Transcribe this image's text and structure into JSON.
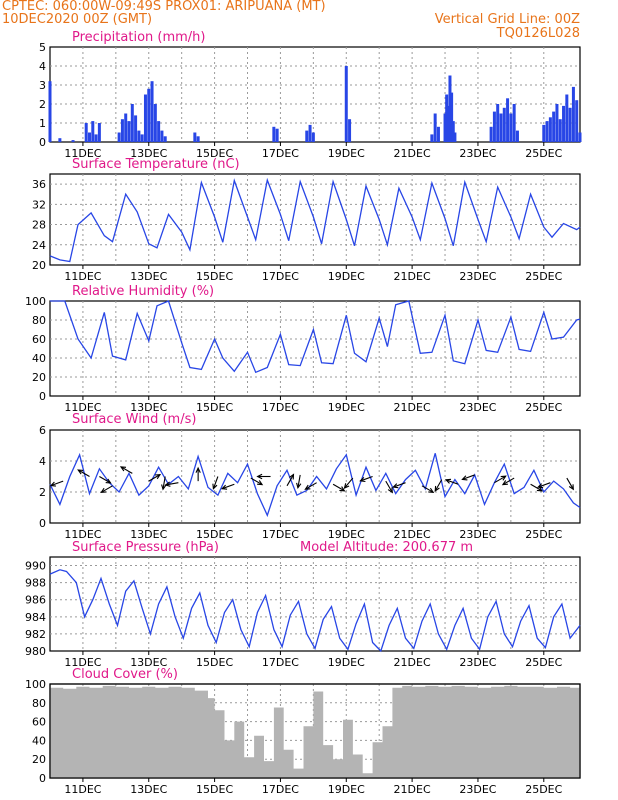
{
  "header": {
    "left_line1": "CPTEC:   060:00W-09:49S   PROX01: ARIPUANA (MT)",
    "left_line2": "10DEC2020 00Z (GMT)",
    "right_line1": "Vertical Grid Line: 00Z",
    "right_line2": "TQ0126L028"
  },
  "colors": {
    "header_text": "#e8741a",
    "panel_title": "#e0198a",
    "series_line": "#2846e6",
    "bar_fill": "#2846e6",
    "cloud_fill": "#b4b4b4",
    "grid": "#9a9a9a",
    "arrow": "#000000"
  },
  "chart_data": [
    {
      "id": "precip",
      "type": "bar",
      "title": "Precipitation (mm/h)",
      "ylim": [
        0,
        5
      ],
      "yticks": [
        "0",
        "1",
        "2",
        "3",
        "4",
        "5"
      ],
      "x_ticks": [
        "11DEC",
        "13DEC",
        "15DEC",
        "17DEC",
        "19DEC",
        "21DEC",
        "23DEC",
        "25DEC"
      ],
      "x": [
        0,
        0.3,
        0.7,
        1.1,
        1.2,
        1.3,
        1.4,
        1.5,
        2.1,
        2.2,
        2.3,
        2.4,
        2.5,
        2.6,
        2.7,
        2.8,
        2.9,
        3.0,
        3.1,
        3.2,
        3.3,
        3.4,
        3.5,
        4.4,
        4.5,
        6.8,
        6.9,
        7.8,
        7.9,
        8.0,
        9.0,
        9.1,
        11.6,
        11.7,
        11.8,
        12.0,
        12.05,
        12.1,
        12.15,
        12.2,
        12.25,
        12.3,
        13.4,
        13.5,
        13.6,
        13.7,
        13.8,
        13.9,
        14.0,
        14.1,
        14.2,
        15.0,
        15.1,
        15.2,
        15.3,
        15.4,
        15.5,
        15.6,
        15.7,
        15.8,
        15.9,
        16.0,
        16.1
      ],
      "values": [
        3.2,
        0.2,
        0.1,
        1.0,
        0.5,
        1.1,
        0.4,
        1.0,
        0.5,
        1.2,
        1.5,
        1.1,
        2.0,
        1.4,
        0.6,
        0.4,
        2.5,
        2.8,
        3.2,
        2.0,
        1.1,
        0.6,
        0.3,
        0.5,
        0.3,
        0.8,
        0.7,
        0.6,
        0.9,
        0.5,
        4.0,
        1.2,
        0.4,
        1.5,
        0.8,
        1.5,
        2.5,
        1.9,
        3.5,
        2.6,
        1.1,
        0.5,
        0.8,
        1.6,
        2.0,
        1.5,
        1.8,
        2.3,
        1.5,
        2.0,
        0.6,
        0.9,
        1.1,
        1.3,
        1.6,
        2.0,
        1.2,
        1.9,
        2.5,
        1.8,
        2.9,
        2.2,
        0.5
      ]
    },
    {
      "id": "temp",
      "type": "line",
      "title": "Surface Temperature (nC)",
      "ylim": [
        20,
        38
      ],
      "yticks": [
        "20",
        "24",
        "28",
        "32",
        "36"
      ],
      "x_ticks": [
        "11DEC",
        "13DEC",
        "15DEC",
        "17DEC",
        "19DEC",
        "21DEC",
        "23DEC",
        "25DEC"
      ],
      "x": [
        0,
        0.3,
        0.6,
        0.85,
        1.25,
        1.65,
        1.9,
        2.3,
        2.65,
        3.0,
        3.25,
        3.6,
        4.0,
        4.25,
        4.6,
        5.0,
        5.25,
        5.6,
        6.0,
        6.25,
        6.6,
        7.0,
        7.25,
        7.6,
        8.0,
        8.25,
        8.6,
        9.0,
        9.25,
        9.6,
        10.0,
        10.25,
        10.6,
        11.0,
        11.25,
        11.6,
        12.0,
        12.25,
        12.6,
        13.0,
        13.25,
        13.6,
        14.0,
        14.25,
        14.6,
        15.0,
        15.25,
        15.6,
        16.0,
        16.1
      ],
      "values": [
        21.8,
        21.0,
        20.7,
        28.0,
        30.3,
        25.8,
        24.6,
        34.0,
        30.5,
        24.2,
        23.4,
        30.0,
        26.5,
        23.0,
        36.3,
        29.5,
        24.5,
        36.7,
        29.5,
        25.0,
        36.8,
        30.0,
        24.8,
        36.5,
        29.5,
        24.2,
        36.5,
        29.0,
        23.8,
        35.6,
        29.0,
        24.0,
        35.2,
        29.5,
        25.0,
        36.2,
        29.2,
        23.8,
        36.4,
        29.0,
        24.6,
        35.4,
        29.5,
        25.2,
        34.0,
        27.5,
        25.5,
        28.2,
        27.0,
        27.5
      ]
    },
    {
      "id": "rh",
      "type": "line",
      "title": "Relative Humidity (%)",
      "ylim": [
        0,
        100
      ],
      "yticks": [
        "0",
        "20",
        "40",
        "60",
        "80",
        "100"
      ],
      "x_ticks": [
        "11DEC",
        "13DEC",
        "15DEC",
        "17DEC",
        "19DEC",
        "21DEC",
        "23DEC",
        "25DEC"
      ],
      "x": [
        0,
        0.45,
        0.85,
        1.25,
        1.65,
        1.9,
        2.3,
        2.65,
        3.0,
        3.25,
        3.6,
        4.0,
        4.25,
        4.6,
        5.0,
        5.25,
        5.6,
        6.0,
        6.25,
        6.6,
        7.0,
        7.25,
        7.6,
        8.0,
        8.25,
        8.6,
        9.0,
        9.25,
        9.6,
        10.0,
        10.25,
        10.5,
        10.9,
        11.25,
        11.6,
        12.0,
        12.25,
        12.6,
        13.0,
        13.25,
        13.6,
        14.0,
        14.25,
        14.6,
        15.0,
        15.25,
        15.6,
        16.0,
        16.1
      ],
      "values": [
        100,
        100,
        60,
        40,
        88,
        42,
        38,
        87,
        58,
        95,
        100,
        56,
        30,
        28,
        60,
        40,
        26,
        46,
        25,
        30,
        65,
        33,
        32,
        70,
        35,
        34,
        85,
        45,
        36,
        82,
        52,
        96,
        100,
        45,
        46,
        85,
        37,
        34,
        80,
        48,
        46,
        83,
        49,
        47,
        88,
        60,
        62,
        80,
        81
      ]
    },
    {
      "id": "wind",
      "type": "line",
      "title": "Surface Wind (m/s)",
      "ylim": [
        0,
        6
      ],
      "yticks": [
        "0",
        "2",
        "4",
        "6"
      ],
      "x_ticks": [
        "11DEC",
        "13DEC",
        "15DEC",
        "17DEC",
        "19DEC",
        "21DEC",
        "23DEC",
        "25DEC"
      ],
      "x": [
        0,
        0.3,
        0.6,
        0.9,
        1.2,
        1.5,
        1.8,
        2.1,
        2.4,
        2.7,
        3.0,
        3.3,
        3.6,
        3.9,
        4.2,
        4.5,
        4.8,
        5.1,
        5.4,
        5.7,
        6.0,
        6.3,
        6.6,
        6.9,
        7.2,
        7.5,
        7.8,
        8.1,
        8.4,
        8.7,
        9.0,
        9.3,
        9.6,
        9.9,
        10.2,
        10.5,
        10.8,
        11.1,
        11.4,
        11.7,
        12.0,
        12.3,
        12.6,
        12.9,
        13.2,
        13.5,
        13.8,
        14.1,
        14.4,
        14.7,
        15.0,
        15.3,
        15.6,
        15.9,
        16.1
      ],
      "values": [
        2.5,
        1.2,
        3.0,
        4.4,
        1.9,
        3.5,
        2.6,
        2.0,
        3.2,
        1.8,
        2.4,
        3.6,
        2.5,
        3.0,
        2.2,
        4.3,
        2.3,
        1.8,
        3.2,
        2.6,
        3.8,
        1.9,
        0.5,
        2.4,
        3.4,
        1.8,
        2.1,
        3.0,
        2.2,
        3.5,
        4.4,
        1.8,
        3.6,
        2.1,
        3.2,
        1.9,
        2.8,
        3.4,
        2.2,
        4.5,
        1.7,
        2.8,
        1.9,
        3.1,
        1.2,
        2.6,
        3.8,
        1.9,
        2.3,
        3.4,
        2.0,
        2.7,
        2.2,
        1.3,
        1.0
      ],
      "arrows": [
        {
          "x": 0.4,
          "y": 2.7,
          "angle": 200
        },
        {
          "x": 1.2,
          "y": 3.0,
          "angle": 150
        },
        {
          "x": 1.5,
          "y": 3.0,
          "angle": 330
        },
        {
          "x": 1.9,
          "y": 2.4,
          "angle": 210
        },
        {
          "x": 2.5,
          "y": 3.2,
          "angle": 150
        },
        {
          "x": 3.0,
          "y": 2.7,
          "angle": 30
        },
        {
          "x": 3.5,
          "y": 3.0,
          "angle": 260
        },
        {
          "x": 3.9,
          "y": 2.6,
          "angle": 190
        },
        {
          "x": 4.5,
          "y": 2.7,
          "angle": 90
        },
        {
          "x": 5.1,
          "y": 3.0,
          "angle": 250
        },
        {
          "x": 5.6,
          "y": 2.5,
          "angle": 200
        },
        {
          "x": 6.1,
          "y": 2.9,
          "angle": 330
        },
        {
          "x": 6.7,
          "y": 3.0,
          "angle": 180
        },
        {
          "x": 7.2,
          "y": 2.4,
          "angle": 60
        },
        {
          "x": 7.6,
          "y": 3.1,
          "angle": 260
        },
        {
          "x": 8.1,
          "y": 2.6,
          "angle": 210
        },
        {
          "x": 8.6,
          "y": 2.5,
          "angle": 330
        },
        {
          "x": 9.2,
          "y": 2.9,
          "angle": 230
        },
        {
          "x": 9.8,
          "y": 3.0,
          "angle": 200
        },
        {
          "x": 10.2,
          "y": 2.7,
          "angle": 300
        },
        {
          "x": 10.8,
          "y": 2.6,
          "angle": 200
        },
        {
          "x": 11.3,
          "y": 2.4,
          "angle": 330
        },
        {
          "x": 11.9,
          "y": 2.8,
          "angle": 240
        },
        {
          "x": 12.4,
          "y": 2.5,
          "angle": 160
        },
        {
          "x": 12.9,
          "y": 3.1,
          "angle": 200
        },
        {
          "x": 13.5,
          "y": 2.6,
          "angle": 30
        },
        {
          "x": 14.1,
          "y": 2.9,
          "angle": 210
        },
        {
          "x": 14.6,
          "y": 2.5,
          "angle": 330
        },
        {
          "x": 15.2,
          "y": 2.6,
          "angle": 200
        },
        {
          "x": 15.7,
          "y": 2.9,
          "angle": 300
        }
      ]
    },
    {
      "id": "pres",
      "type": "line",
      "title": "Surface Pressure (hPa)",
      "subtitle": "Model Altitude: 200.677  m",
      "ylim": [
        980,
        991
      ],
      "yticks": [
        "980",
        "982",
        "984",
        "986",
        "988",
        "990"
      ],
      "x_ticks": [
        "11DEC",
        "13DEC",
        "15DEC",
        "17DEC",
        "19DEC",
        "21DEC",
        "23DEC",
        "25DEC"
      ],
      "x": [
        0,
        0.3,
        0.5,
        0.8,
        1.05,
        1.3,
        1.55,
        1.8,
        2.05,
        2.3,
        2.55,
        2.8,
        3.05,
        3.3,
        3.55,
        3.8,
        4.05,
        4.3,
        4.55,
        4.8,
        5.05,
        5.3,
        5.55,
        5.8,
        6.05,
        6.3,
        6.55,
        6.8,
        7.05,
        7.3,
        7.55,
        7.8,
        8.05,
        8.3,
        8.55,
        8.8,
        9.05,
        9.3,
        9.55,
        9.8,
        10.05,
        10.3,
        10.55,
        10.8,
        11.05,
        11.3,
        11.55,
        11.8,
        12.05,
        12.3,
        12.55,
        12.8,
        13.05,
        13.3,
        13.55,
        13.8,
        14.05,
        14.3,
        14.55,
        14.8,
        15.05,
        15.3,
        15.55,
        15.8,
        16.1
      ],
      "values": [
        989.0,
        989.5,
        989.3,
        988.0,
        984.0,
        986.0,
        988.5,
        985.5,
        983.0,
        987.0,
        988.2,
        985.0,
        982.0,
        985.5,
        987.5,
        984.0,
        981.5,
        985.0,
        986.8,
        983.0,
        981.0,
        984.5,
        986.0,
        982.5,
        980.5,
        984.5,
        986.5,
        982.5,
        980.5,
        984.2,
        985.8,
        982.0,
        980.3,
        983.7,
        985.2,
        981.5,
        980.2,
        983.2,
        985.5,
        981.0,
        980.0,
        983.0,
        985.0,
        981.5,
        980.3,
        983.5,
        985.5,
        982.0,
        980.2,
        983.0,
        985.0,
        981.5,
        980.2,
        984.0,
        985.8,
        982.0,
        980.5,
        983.5,
        985.3,
        981.5,
        980.4,
        984.0,
        985.5,
        981.5,
        983.0
      ]
    },
    {
      "id": "cloud",
      "type": "area",
      "title": "Cloud Cover (%)",
      "ylim": [
        0,
        100
      ],
      "yticks": [
        "0",
        "20",
        "40",
        "60",
        "80",
        "100"
      ],
      "x_ticks": [
        "11DEC",
        "13DEC",
        "15DEC",
        "17DEC",
        "19DEC",
        "21DEC",
        "23DEC",
        "25DEC"
      ],
      "x": [
        0,
        0.4,
        0.8,
        1.2,
        1.6,
        2.0,
        2.4,
        2.8,
        3.2,
        3.6,
        4.0,
        4.4,
        4.8,
        5.0,
        5.3,
        5.6,
        5.9,
        6.2,
        6.5,
        6.8,
        7.1,
        7.4,
        7.7,
        8.0,
        8.3,
        8.6,
        8.9,
        9.2,
        9.5,
        9.8,
        10.1,
        10.4,
        10.7,
        11.0,
        11.4,
        11.8,
        12.2,
        12.6,
        13.0,
        13.4,
        13.8,
        14.2,
        14.6,
        15.0,
        15.4,
        15.8,
        16.1
      ],
      "values": [
        96,
        95,
        97,
        96,
        98,
        97,
        96,
        97,
        96,
        97,
        96,
        93,
        85,
        72,
        40,
        60,
        22,
        45,
        18,
        75,
        30,
        10,
        55,
        92,
        35,
        20,
        62,
        25,
        5,
        38,
        55,
        96,
        98,
        97,
        98,
        97,
        98,
        97,
        96,
        97,
        98,
        97,
        97,
        96,
        97,
        96,
        95
      ]
    }
  ]
}
